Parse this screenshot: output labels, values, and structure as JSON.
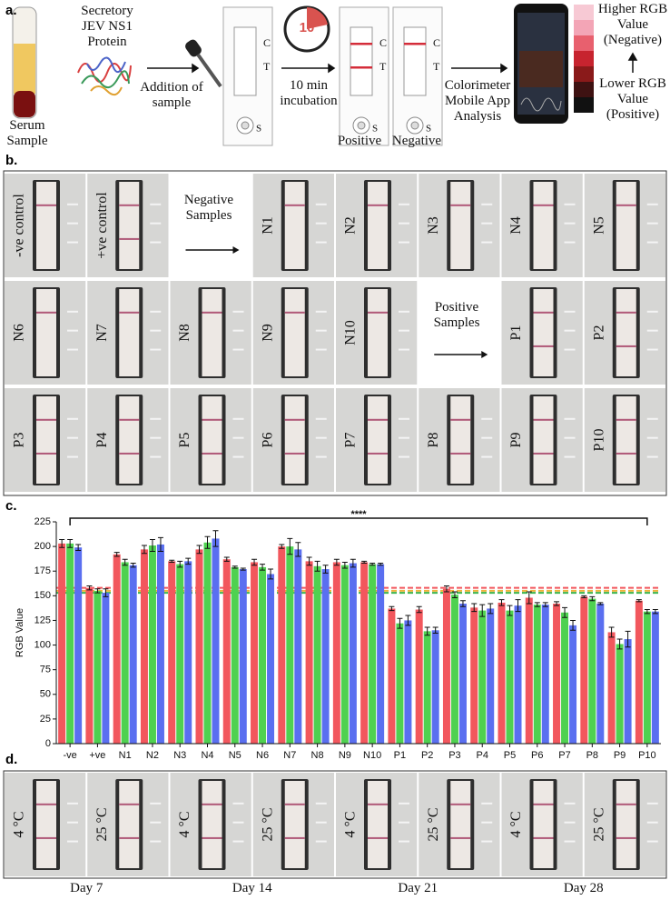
{
  "panel_a": {
    "label": "a.",
    "serum_sample": "Serum Sample",
    "protein": "Secretory JEV NS1 Protein",
    "step1": "Addition of sample",
    "timer": "10",
    "step2": "10 min incubation",
    "strip_letters": [
      "C",
      "T",
      "S"
    ],
    "result_labels": [
      "Positive",
      "Negative"
    ],
    "step3": "Colorimeter Mobile App Analysis",
    "scale_high": "Higher RGB Value (Negative)",
    "scale_low": "Lower RGB Value (Positive)"
  },
  "panel_b": {
    "label": "b.",
    "tiles": [
      "-ve control",
      "+ve control",
      "N1",
      "N2",
      "N3",
      "N4",
      "N5",
      "N6",
      "N7",
      "N8",
      "N9",
      "N10",
      "P1",
      "P2",
      "P3",
      "P4",
      "P5",
      "P6",
      "P7",
      "P8",
      "P9",
      "P10"
    ],
    "negative_arrow": "Negative Samples",
    "positive_arrow": "Positive Samples"
  },
  "chart_data": {
    "type": "bar",
    "panel_label": "c.",
    "y_label": "RGB Value",
    "annotation": "****",
    "categories": [
      "-ve",
      "+ve",
      "N1",
      "N2",
      "N3",
      "N4",
      "N5",
      "N6",
      "N7",
      "N8",
      "N9",
      "N10",
      "P1",
      "P2",
      "P3",
      "P4",
      "P5",
      "P6",
      "P7",
      "P8",
      "P9",
      "P10"
    ],
    "series": [
      {
        "color": "#f2575d",
        "values": [
          203,
          158,
          192,
          197,
          185,
          197,
          187,
          184,
          200,
          185,
          184,
          184,
          137,
          136,
          157,
          138,
          143,
          148,
          142,
          149,
          113,
          145
        ],
        "errors": [
          4,
          2,
          2,
          4,
          1,
          4,
          2,
          3,
          2,
          4,
          3,
          1,
          2,
          3,
          3,
          4,
          3,
          6,
          2,
          1,
          5,
          1
        ]
      },
      {
        "color": "#4fd150",
        "values": [
          203,
          155,
          184,
          201,
          182,
          204,
          179,
          179,
          200,
          180,
          181,
          182,
          122,
          114,
          151,
          135,
          135,
          141,
          133,
          147,
          101,
          134
        ],
        "errors": [
          4,
          2,
          3,
          6,
          3,
          6,
          1,
          3,
          8,
          5,
          3,
          1,
          5,
          4,
          3,
          6,
          5,
          2,
          5,
          2,
          5,
          2
        ]
      },
      {
        "color": "#5a6ff0",
        "values": [
          199,
          153,
          181,
          202,
          185,
          208,
          177,
          172,
          197,
          177,
          183,
          182,
          125,
          115,
          142,
          137,
          140,
          141,
          120,
          142,
          106,
          134
        ],
        "errors": [
          3,
          4,
          2,
          7,
          3,
          8,
          1,
          5,
          7,
          4,
          4,
          1,
          5,
          3,
          3,
          5,
          6,
          2,
          5,
          1,
          8,
          2
        ]
      }
    ],
    "reference_lines": [
      {
        "value": 158,
        "color": "#f2575d"
      },
      {
        "value": 155,
        "color": "#f0b43c"
      },
      {
        "value": 153,
        "color": "#3cb44b"
      }
    ],
    "ylim": [
      0,
      225
    ],
    "yticks": [
      0,
      25,
      50,
      75,
      100,
      125,
      150,
      175,
      200,
      225
    ]
  },
  "panel_d": {
    "label": "d.",
    "temperatures": [
      "4 °C",
      "25 °C"
    ],
    "days": [
      "Day 7",
      "Day 14",
      "Day 21",
      "Day 28"
    ]
  }
}
